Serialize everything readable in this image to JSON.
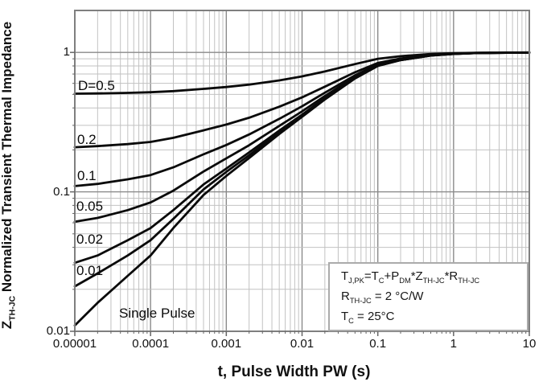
{
  "chart_data": {
    "type": "line",
    "title": "",
    "xlabel": "t, Pulse Width PW (s)",
    "ylabel_segments": [
      {
        "t": "Z"
      },
      {
        "t": "TH-JC",
        "sub": true
      },
      {
        "t": " Normalized Transient Thermal Impedance"
      }
    ],
    "x_scale": "log",
    "y_scale": "log",
    "xlim": [
      1e-05,
      10
    ],
    "ylim": [
      0.01,
      2
    ],
    "grid": "both-log-minor",
    "x_ticks": {
      "values": [
        1e-05,
        0.0001,
        0.001,
        0.01,
        0.1,
        1,
        10
      ],
      "labels": [
        "0.00001",
        "0.0001",
        "0.001",
        "0.01",
        "0.1",
        "1",
        "10"
      ]
    },
    "y_ticks": {
      "values": [
        0.01,
        0.1,
        1
      ],
      "labels": [
        "0.01",
        "0.1",
        "1"
      ]
    },
    "x": [
      1e-05,
      2e-05,
      5e-05,
      0.0001,
      0.0002,
      0.0005,
      0.001,
      0.002,
      0.005,
      0.01,
      0.02,
      0.05,
      0.1,
      0.2,
      0.5,
      1,
      2,
      5,
      10
    ],
    "series": [
      {
        "name": "D-0.5",
        "label": "D=0.5",
        "values": [
          0.506,
          0.508,
          0.513,
          0.518,
          0.528,
          0.548,
          0.565,
          0.588,
          0.63,
          0.673,
          0.73,
          0.825,
          0.9,
          0.94,
          0.975,
          0.988,
          0.995,
          0.998,
          0.999
        ]
      },
      {
        "name": "D-0.2",
        "label": "0.2",
        "values": [
          0.209,
          0.213,
          0.22,
          0.228,
          0.244,
          0.276,
          0.304,
          0.34,
          0.408,
          0.476,
          0.568,
          0.72,
          0.84,
          0.904,
          0.96,
          0.98,
          0.992,
          0.996,
          0.998
        ]
      },
      {
        "name": "D-0.1",
        "label": "0.1",
        "values": [
          0.11,
          0.114,
          0.123,
          0.132,
          0.15,
          0.186,
          0.217,
          0.258,
          0.334,
          0.411,
          0.514,
          0.685,
          0.82,
          0.892,
          0.955,
          0.978,
          0.991,
          0.996,
          0.997
        ]
      },
      {
        "name": "D-0.05",
        "label": "0.05",
        "values": [
          0.061,
          0.065,
          0.074,
          0.084,
          0.102,
          0.14,
          0.174,
          0.216,
          0.297,
          0.378,
          0.487,
          0.668,
          0.81,
          0.886,
          0.953,
          0.976,
          0.991,
          0.995,
          0.997
        ]
      },
      {
        "name": "D-0.02",
        "label": "0.02",
        "values": [
          0.031,
          0.035,
          0.045,
          0.055,
          0.074,
          0.113,
          0.147,
          0.192,
          0.275,
          0.358,
          0.471,
          0.657,
          0.804,
          0.882,
          0.951,
          0.976,
          0.99,
          0.995,
          0.997
        ]
      },
      {
        "name": "D-0.01",
        "label": "0.01",
        "values": [
          0.021,
          0.026,
          0.035,
          0.045,
          0.064,
          0.104,
          0.139,
          0.183,
          0.267,
          0.35,
          0.465,
          0.653,
          0.802,
          0.881,
          0.951,
          0.975,
          0.99,
          0.995,
          0.997
        ]
      },
      {
        "name": "single-pulse",
        "label": "Single Pulse",
        "values": [
          0.011,
          0.016,
          0.025,
          0.035,
          0.055,
          0.095,
          0.13,
          0.175,
          0.26,
          0.345,
          0.46,
          0.65,
          0.8,
          0.88,
          0.95,
          0.975,
          0.99,
          0.995,
          0.997
        ]
      }
    ],
    "annotation": {
      "lines": [
        [
          {
            "t": "T"
          },
          {
            "t": "J,PK",
            "sub": true
          },
          {
            "t": "=T"
          },
          {
            "t": "C",
            "sub": true
          },
          {
            "t": "+P"
          },
          {
            "t": "DM",
            "sub": true
          },
          {
            "t": "*Z"
          },
          {
            "t": "TH-JC",
            "sub": true
          },
          {
            "t": "*R"
          },
          {
            "t": "TH-JC",
            "sub": true
          }
        ],
        [
          {
            "t": "R"
          },
          {
            "t": "TH-JC",
            "sub": true
          },
          {
            "t": " = 2 °C/W"
          }
        ],
        [
          {
            "t": "T"
          },
          {
            "t": "C",
            "sub": true
          },
          {
            "t": " = 25°C"
          }
        ]
      ]
    },
    "legend_position": "labels-on-curves",
    "colors": {
      "curve": "#0a0a0a",
      "grid_minor": "#c2c2c2",
      "grid_major": "#8a8a8a",
      "axis_border": "#7f7f7f",
      "tick": "#666666",
      "text": "#111111",
      "background": "#ffffff",
      "annotation_border": "#ababab"
    }
  }
}
